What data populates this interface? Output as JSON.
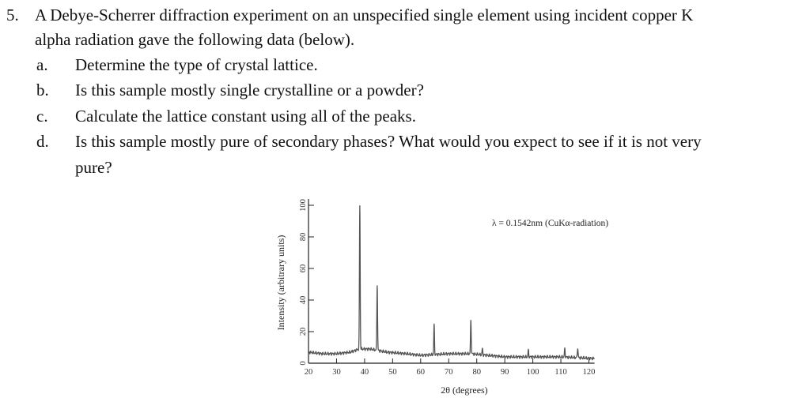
{
  "problem": {
    "number": "5.",
    "stem_line1": "A Debye-Scherrer diffraction experiment on an unspecified single element using incident copper K",
    "stem_line2": "alpha radiation gave the following data (below).",
    "items": [
      {
        "label": "a.",
        "text": "Determine the type of crystal lattice."
      },
      {
        "label": "b.",
        "text": "Is this sample mostly single crystalline or a powder?"
      },
      {
        "label": "c.",
        "text": "Calculate the lattice constant using all of the peaks."
      },
      {
        "label": "d.",
        "text": "Is this sample mostly pure of secondary phases? What would you expect to see if it is not very",
        "text2": "pure?"
      }
    ]
  },
  "chart_data": {
    "type": "line",
    "ylabel": "Intensity (arbitrary units)",
    "xlabel": "2θ (degrees)",
    "annotation": "λ = 0.1542nm (CuKα-radiation)",
    "xlim": [
      20,
      122
    ],
    "ylim": [
      0,
      100
    ],
    "xticks": [
      20,
      30,
      40,
      50,
      60,
      70,
      80,
      90,
      100,
      110,
      120
    ],
    "yticks": [
      0,
      20,
      40,
      60,
      80,
      100
    ],
    "baseline": [
      [
        20,
        7
      ],
      [
        25,
        6
      ],
      [
        30,
        6
      ],
      [
        35,
        7
      ],
      [
        38,
        9
      ],
      [
        42,
        9
      ],
      [
        48,
        7
      ],
      [
        55,
        6
      ],
      [
        60,
        5
      ],
      [
        70,
        6
      ],
      [
        78,
        6
      ],
      [
        84,
        5
      ],
      [
        90,
        4
      ],
      [
        100,
        4
      ],
      [
        110,
        4
      ],
      [
        122,
        3
      ]
    ],
    "peaks": [
      {
        "x": 38.3,
        "y": 100
      },
      {
        "x": 44.5,
        "y": 50
      },
      {
        "x": 64.8,
        "y": 24
      },
      {
        "x": 77.9,
        "y": 27
      },
      {
        "x": 82.0,
        "y": 9
      },
      {
        "x": 98.4,
        "y": 8
      },
      {
        "x": 111.4,
        "y": 9
      },
      {
        "x": 116.0,
        "y": 10
      }
    ]
  }
}
